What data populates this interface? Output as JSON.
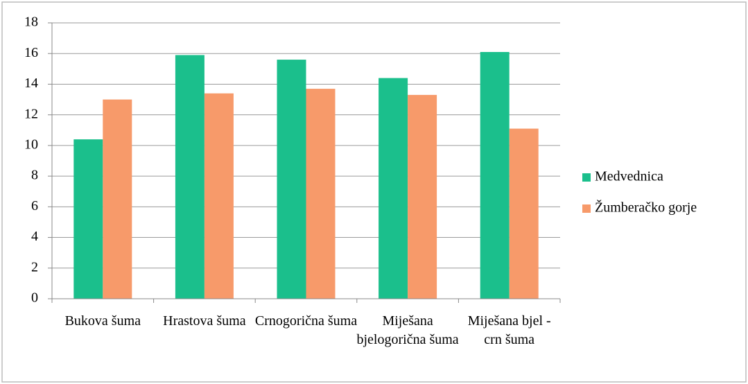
{
  "chart_data": {
    "type": "bar",
    "categories": [
      "Bukova šuma",
      "Hrastova šuma",
      "Crnogorična šuma",
      "Miješana bjelogorična šuma",
      "Miješana bjel - crn šuma"
    ],
    "series": [
      {
        "name": "Medvednica",
        "color": "#1bbf8c",
        "values": [
          10.4,
          15.9,
          15.6,
          14.4,
          16.1
        ]
      },
      {
        "name": "Žumberačko gorje",
        "color": "#f79a6a",
        "values": [
          13.0,
          13.4,
          13.7,
          13.3,
          11.1
        ]
      }
    ],
    "ylim": [
      0,
      18
    ],
    "yticks": [
      0,
      2,
      4,
      6,
      8,
      10,
      12,
      14,
      16,
      18
    ],
    "grid": true,
    "legend": "right"
  }
}
